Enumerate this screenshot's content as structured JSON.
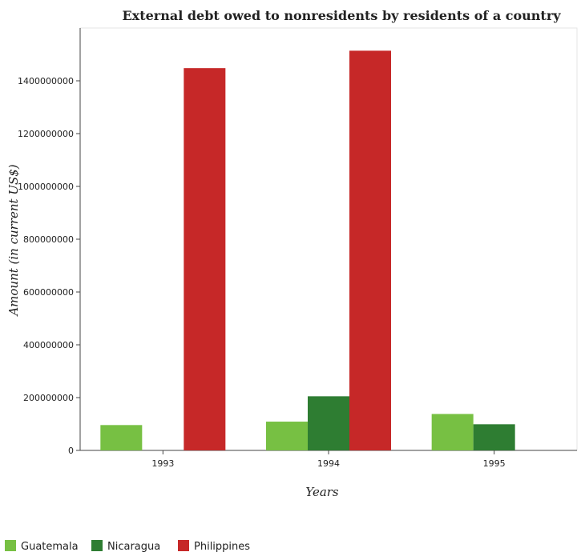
{
  "chart_data": {
    "type": "bar",
    "title": "External debt owed to nonresidents by residents of a country",
    "xlabel": "Years",
    "ylabel": "Amount (in current US$)",
    "categories": [
      "1993",
      "1994",
      "1995"
    ],
    "ylim": [
      0,
      1600000000
    ],
    "yticks": [
      0,
      200000000,
      400000000,
      600000000,
      800000000,
      1000000000,
      1200000000,
      1400000000
    ],
    "ytick_labels": [
      "0",
      "200000000",
      "400000000",
      "600000000",
      "800000000",
      "1000000000",
      "1200000000",
      "1400000000"
    ],
    "series": [
      {
        "name": "Guatemala",
        "color": "#77c043",
        "values": [
          96000000,
          109000000,
          138000000
        ]
      },
      {
        "name": "Nicaragua",
        "color": "#2e7d32",
        "values": [
          0,
          205000000,
          99000000
        ]
      },
      {
        "name": "Philippines",
        "color": "#c62828",
        "values": [
          1448000000,
          1514000000,
          0
        ]
      }
    ],
    "grid": false,
    "legend_position": "bottom-left"
  }
}
